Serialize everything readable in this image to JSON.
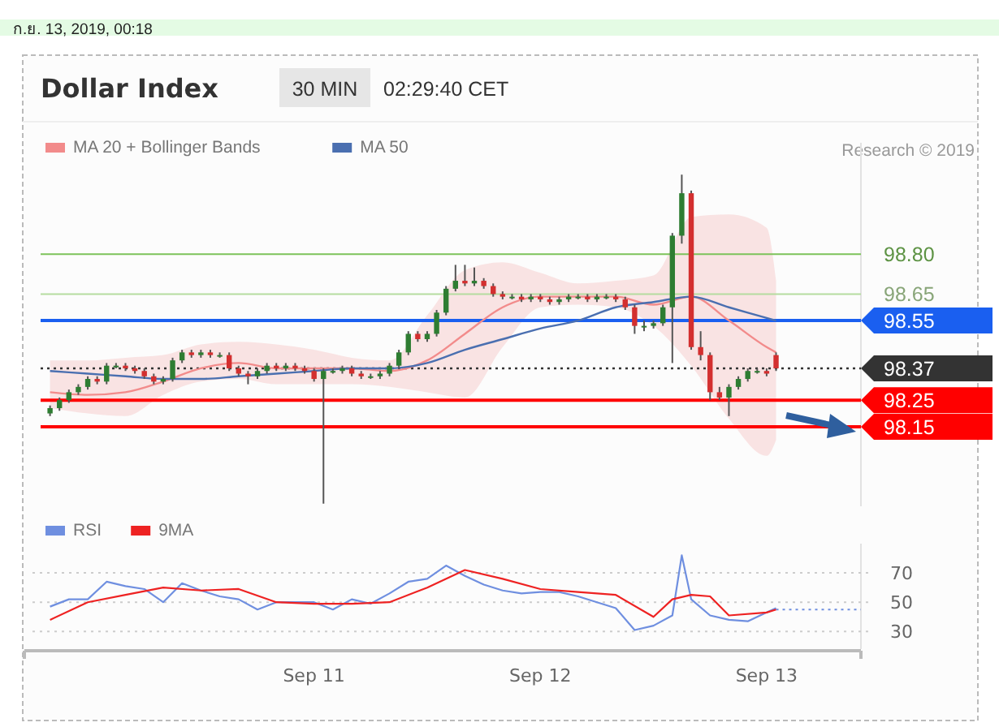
{
  "chart_data": [
    {
      "type": "candlestick",
      "title": "Dollar Index",
      "annotations": [
        "ก.ย. 13, 2019, 00:18",
        "30 MIN",
        "02:29:40 CET",
        "Research © 2019"
      ],
      "x": [
        "2019-09-09T20:00",
        "2019-09-09T21:00",
        "2019-09-09T22:00",
        "2019-09-09T23:00",
        "2019-09-10T00:00",
        "2019-09-10T01:00",
        "2019-09-10T02:00",
        "2019-09-10T03:00",
        "2019-09-10T04:00",
        "2019-09-10T05:00",
        "2019-09-10T06:00",
        "2019-09-10T07:00",
        "2019-09-10T08:00",
        "2019-09-10T09:00",
        "2019-09-10T10:00",
        "2019-09-10T11:00",
        "2019-09-10T12:00",
        "2019-09-10T13:00",
        "2019-09-10T14:00",
        "2019-09-10T15:00",
        "2019-09-10T16:00",
        "2019-09-10T17:00",
        "2019-09-10T18:00",
        "2019-09-10T19:00",
        "2019-09-10T20:00",
        "2019-09-10T21:00",
        "2019-09-10T22:00",
        "2019-09-10T23:00",
        "2019-09-11T00:00",
        "2019-09-11T01:00",
        "2019-09-11T02:00",
        "2019-09-11T03:00",
        "2019-09-11T04:00",
        "2019-09-11T05:00",
        "2019-09-11T06:00",
        "2019-09-11T07:00",
        "2019-09-11T08:00",
        "2019-09-11T09:00",
        "2019-09-11T10:00",
        "2019-09-11T11:00",
        "2019-09-11T12:00",
        "2019-09-11T13:00",
        "2019-09-11T14:00",
        "2019-09-11T15:00",
        "2019-09-11T16:00",
        "2019-09-11T17:00",
        "2019-09-11T18:00",
        "2019-09-11T19:00",
        "2019-09-11T20:00",
        "2019-09-11T21:00",
        "2019-09-11T22:00",
        "2019-09-11T23:00",
        "2019-09-12T00:00",
        "2019-09-12T01:00",
        "2019-09-12T02:00",
        "2019-09-12T03:00",
        "2019-09-12T04:00",
        "2019-09-12T05:00",
        "2019-09-12T06:00",
        "2019-09-12T07:00",
        "2019-09-12T08:00",
        "2019-09-12T09:00",
        "2019-09-12T10:00",
        "2019-09-12T11:00",
        "2019-09-12T12:00",
        "2019-09-12T13:00",
        "2019-09-12T14:00",
        "2019-09-12T15:00",
        "2019-09-12T16:00",
        "2019-09-12T17:00",
        "2019-09-12T18:00",
        "2019-09-12T19:00",
        "2019-09-12T20:00",
        "2019-09-12T21:00",
        "2019-09-12T22:00",
        "2019-09-12T23:00",
        "2019-09-13T00:00",
        "2019-09-13T01:00"
      ],
      "ohlc": [
        [
          98.2,
          98.23,
          98.19,
          98.22
        ],
        [
          98.22,
          98.26,
          98.21,
          98.25
        ],
        [
          98.25,
          98.29,
          98.24,
          98.28
        ],
        [
          98.28,
          98.31,
          98.27,
          98.3
        ],
        [
          98.3,
          98.34,
          98.29,
          98.33
        ],
        [
          98.33,
          98.34,
          98.31,
          98.32
        ],
        [
          98.32,
          98.39,
          98.31,
          98.38
        ],
        [
          98.38,
          98.39,
          98.37,
          98.38
        ],
        [
          98.38,
          98.39,
          98.36,
          98.37
        ],
        [
          98.37,
          98.38,
          98.35,
          98.36
        ],
        [
          98.36,
          98.37,
          98.33,
          98.34
        ],
        [
          98.34,
          98.35,
          98.31,
          98.32
        ],
        [
          98.32,
          98.34,
          98.31,
          98.33
        ],
        [
          98.33,
          98.41,
          98.32,
          98.4
        ],
        [
          98.4,
          98.44,
          98.39,
          98.43
        ],
        [
          98.43,
          98.44,
          98.41,
          98.42
        ],
        [
          98.42,
          98.44,
          98.41,
          98.43
        ],
        [
          98.43,
          98.44,
          98.41,
          98.42
        ],
        [
          98.42,
          98.43,
          98.41,
          98.42
        ],
        [
          98.42,
          98.43,
          98.36,
          98.37
        ],
        [
          98.37,
          98.38,
          98.34,
          98.35
        ],
        [
          98.35,
          98.36,
          98.31,
          98.34
        ],
        [
          98.34,
          98.37,
          98.33,
          98.36
        ],
        [
          98.36,
          98.39,
          98.35,
          98.38
        ],
        [
          98.38,
          98.39,
          98.36,
          98.37
        ],
        [
          98.37,
          98.39,
          98.36,
          98.38
        ],
        [
          98.38,
          98.39,
          98.36,
          98.37
        ],
        [
          98.37,
          98.38,
          98.35,
          98.36
        ],
        [
          98.36,
          98.37,
          98.32,
          98.33
        ],
        [
          98.33,
          98.37,
          97.86,
          98.36
        ],
        [
          98.36,
          98.37,
          98.35,
          98.36
        ],
        [
          98.36,
          98.38,
          98.35,
          98.37
        ],
        [
          98.37,
          98.38,
          98.34,
          98.35
        ],
        [
          98.35,
          98.36,
          98.33,
          98.34
        ],
        [
          98.34,
          98.35,
          98.33,
          98.34
        ],
        [
          98.34,
          98.36,
          98.33,
          98.35
        ],
        [
          98.35,
          98.39,
          98.34,
          98.38
        ],
        [
          98.38,
          98.44,
          98.37,
          98.43
        ],
        [
          98.43,
          98.51,
          98.42,
          98.5
        ],
        [
          98.5,
          98.51,
          98.47,
          98.48
        ],
        [
          98.48,
          98.51,
          98.47,
          98.5
        ],
        [
          98.5,
          98.59,
          98.49,
          98.58
        ],
        [
          98.58,
          98.68,
          98.57,
          98.67
        ],
        [
          98.67,
          98.76,
          98.66,
          98.7
        ],
        [
          98.7,
          98.76,
          98.68,
          98.69
        ],
        [
          98.69,
          98.75,
          98.68,
          98.7
        ],
        [
          98.7,
          98.71,
          98.67,
          98.68
        ],
        [
          98.68,
          98.69,
          98.64,
          98.65
        ],
        [
          98.65,
          98.66,
          98.63,
          98.64
        ],
        [
          98.64,
          98.65,
          98.63,
          98.64
        ],
        [
          98.64,
          98.65,
          98.62,
          98.63
        ],
        [
          98.63,
          98.65,
          98.62,
          98.64
        ],
        [
          98.64,
          98.65,
          98.62,
          98.63
        ],
        [
          98.63,
          98.64,
          98.61,
          98.62
        ],
        [
          98.62,
          98.64,
          98.61,
          98.63
        ],
        [
          98.63,
          98.65,
          98.62,
          98.64
        ],
        [
          98.64,
          98.65,
          98.63,
          98.64
        ],
        [
          98.64,
          98.65,
          98.62,
          98.63
        ],
        [
          98.63,
          98.65,
          98.62,
          98.64
        ],
        [
          98.64,
          98.65,
          98.63,
          98.64
        ],
        [
          98.64,
          98.65,
          98.62,
          98.63
        ],
        [
          98.63,
          98.64,
          98.59,
          98.6
        ],
        [
          98.6,
          98.61,
          98.5,
          98.53
        ],
        [
          98.53,
          98.55,
          98.51,
          98.53
        ],
        [
          98.53,
          98.55,
          98.52,
          98.54
        ],
        [
          98.54,
          98.61,
          98.53,
          98.6
        ],
        [
          98.6,
          98.88,
          98.39,
          98.87
        ],
        [
          98.87,
          99.1,
          98.84,
          99.03
        ],
        [
          99.03,
          99.04,
          98.44,
          98.45
        ],
        [
          98.45,
          98.51,
          98.4,
          98.42
        ],
        [
          98.42,
          98.43,
          98.25,
          98.28
        ],
        [
          98.28,
          98.3,
          98.25,
          98.26
        ],
        [
          98.26,
          98.31,
          98.19,
          98.3
        ],
        [
          98.3,
          98.34,
          98.29,
          98.33
        ],
        [
          98.33,
          98.37,
          98.32,
          98.36
        ],
        [
          98.36,
          98.37,
          98.35,
          98.36
        ],
        [
          98.36,
          98.37,
          98.34,
          98.35
        ],
        [
          98.42,
          98.43,
          98.36,
          98.37
        ]
      ],
      "series": [
        {
          "type": "line",
          "name": "MA 20 + Bollinger Bands",
          "color": "#f28b8b",
          "x": [
            "2019-09-09T20:00",
            "2019-09-10T00:00",
            "2019-09-10T04:00",
            "2019-09-10T08:00",
            "2019-09-10T12:00",
            "2019-09-10T16:00",
            "2019-09-10T20:00",
            "2019-09-11T00:00",
            "2019-09-11T04:00",
            "2019-09-11T08:00",
            "2019-09-11T12:00",
            "2019-09-11T16:00",
            "2019-09-11T20:00",
            "2019-09-12T00:00",
            "2019-09-12T04:00",
            "2019-09-12T08:00",
            "2019-09-12T12:00",
            "2019-09-12T16:00",
            "2019-09-12T20:00",
            "2019-09-13T00:00",
            "2019-09-13T01:00"
          ],
          "values": [
            98.28,
            98.27,
            98.28,
            98.32,
            98.37,
            98.39,
            98.37,
            98.37,
            98.37,
            98.36,
            98.4,
            98.5,
            98.6,
            98.64,
            98.64,
            98.64,
            98.61,
            98.64,
            98.55,
            98.45,
            98.43
          ],
          "lower": [
            98.22,
            98.2,
            98.19,
            98.27,
            98.32,
            98.33,
            98.31,
            98.31,
            98.31,
            98.3,
            98.28,
            98.26,
            98.45,
            98.6,
            98.61,
            98.6,
            98.53,
            98.38,
            98.18,
            98.04,
            98.1
          ],
          "upper": [
            98.4,
            98.4,
            98.41,
            98.42,
            98.46,
            98.47,
            98.46,
            98.44,
            98.41,
            98.4,
            98.57,
            98.74,
            98.77,
            98.73,
            98.69,
            98.7,
            98.72,
            98.94,
            98.95,
            98.9,
            98.7
          ]
        },
        {
          "type": "line",
          "name": "MA 50",
          "color": "#4a6fb0",
          "x": [
            "2019-09-09T20:00",
            "2019-09-10T00:00",
            "2019-09-10T04:00",
            "2019-09-10T08:00",
            "2019-09-10T12:00",
            "2019-09-10T16:00",
            "2019-09-10T20:00",
            "2019-09-11T00:00",
            "2019-09-11T04:00",
            "2019-09-11T08:00",
            "2019-09-11T12:00",
            "2019-09-11T16:00",
            "2019-09-11T20:00",
            "2019-09-12T00:00",
            "2019-09-12T04:00",
            "2019-09-12T08:00",
            "2019-09-12T12:00",
            "2019-09-12T16:00",
            "2019-09-12T20:00",
            "2019-09-13T00:00",
            "2019-09-13T01:00"
          ],
          "values": [
            98.36,
            98.35,
            98.34,
            98.33,
            98.33,
            98.34,
            98.35,
            98.36,
            98.37,
            98.37,
            98.39,
            98.44,
            98.48,
            98.52,
            98.55,
            98.6,
            98.62,
            98.64,
            98.6,
            98.56,
            98.55
          ]
        }
      ],
      "xlim": [
        "2019-09-09T19:00",
        "2019-09-13T10:00"
      ],
      "ylim": [
        97.85,
        99.22
      ],
      "legend": "top left",
      "ref_lines": [
        {
          "axis": "y",
          "value": 98.8,
          "label": "98.80",
          "color": "#7cc35a"
        },
        {
          "axis": "y",
          "value": 98.65,
          "label": "98.65",
          "color": "#b5dca0"
        },
        {
          "axis": "y",
          "value": 98.55,
          "label": "98.55",
          "color": "#1a5ff0"
        },
        {
          "axis": "y",
          "value": 98.37,
          "label": "98.37",
          "color": "#333333",
          "line_style": "dotted"
        },
        {
          "axis": "y",
          "value": 98.25,
          "label": "98.25",
          "color": "#ff0000"
        },
        {
          "axis": "y",
          "value": 98.15,
          "label": "98.15",
          "color": "#ff0000"
        }
      ]
    },
    {
      "type": "line",
      "legend": "top left",
      "grid": "y",
      "series": [
        {
          "name": "RSI",
          "color": "#6f8fe0",
          "x": [
            "2019-09-09T20:00",
            "2019-09-09T22:00",
            "2019-09-10T00:00",
            "2019-09-10T02:00",
            "2019-09-10T04:00",
            "2019-09-10T06:00",
            "2019-09-10T08:00",
            "2019-09-10T10:00",
            "2019-09-10T12:00",
            "2019-09-10T14:00",
            "2019-09-10T16:00",
            "2019-09-10T18:00",
            "2019-09-10T20:00",
            "2019-09-10T22:00",
            "2019-09-11T00:00",
            "2019-09-11T02:00",
            "2019-09-11T04:00",
            "2019-09-11T06:00",
            "2019-09-11T08:00",
            "2019-09-11T10:00",
            "2019-09-11T12:00",
            "2019-09-11T14:00",
            "2019-09-11T16:00",
            "2019-09-11T18:00",
            "2019-09-11T20:00",
            "2019-09-11T22:00",
            "2019-09-12T00:00",
            "2019-09-12T02:00",
            "2019-09-12T04:00",
            "2019-09-12T06:00",
            "2019-09-12T08:00",
            "2019-09-12T10:00",
            "2019-09-12T12:00",
            "2019-09-12T14:00",
            "2019-09-12T15:00",
            "2019-09-12T16:00",
            "2019-09-12T18:00",
            "2019-09-12T20:00",
            "2019-09-12T22:00",
            "2019-09-13T00:00",
            "2019-09-13T01:00"
          ],
          "values": [
            47,
            52,
            52,
            64,
            61,
            59,
            50,
            63,
            58,
            54,
            52,
            45,
            50,
            50,
            50,
            45,
            52,
            49,
            56,
            64,
            66,
            75,
            68,
            62,
            58,
            56,
            57,
            57,
            54,
            50,
            46,
            31,
            34,
            41,
            82,
            52,
            41,
            38,
            37,
            43,
            46
          ]
        },
        {
          "name": "9MA",
          "color": "#ee2222",
          "x": [
            "2019-09-09T20:00",
            "2019-09-10T00:00",
            "2019-09-10T04:00",
            "2019-09-10T08:00",
            "2019-09-10T12:00",
            "2019-09-10T16:00",
            "2019-09-10T20:00",
            "2019-09-11T00:00",
            "2019-09-11T04:00",
            "2019-09-11T08:00",
            "2019-09-11T12:00",
            "2019-09-11T16:00",
            "2019-09-11T20:00",
            "2019-09-12T00:00",
            "2019-09-12T04:00",
            "2019-09-12T08:00",
            "2019-09-12T12:00",
            "2019-09-12T14:00",
            "2019-09-12T16:00",
            "2019-09-12T18:00",
            "2019-09-12T20:00",
            "2019-09-13T00:00",
            "2019-09-13T01:00"
          ],
          "values": [
            38,
            50,
            55,
            60,
            58,
            59,
            50,
            49,
            49,
            50,
            60,
            72,
            66,
            59,
            57,
            55,
            40,
            52,
            55,
            54,
            41,
            43,
            45
          ]
        }
      ],
      "xlim": [
        "2019-09-09T19:00",
        "2019-09-13T10:00"
      ],
      "xticks": [
        {
          "value": "2019-09-11",
          "label": "Sep 11"
        },
        {
          "value": "2019-09-12",
          "label": "Sep 12"
        },
        {
          "value": "2019-09-13",
          "label": "Sep 13"
        }
      ],
      "ylim": [
        18,
        90
      ],
      "yticks": [
        30,
        50,
        70
      ],
      "ref_lines": [
        {
          "axis": "y",
          "value": 45,
          "color": "#6f8fe0",
          "line_style": "dotted"
        }
      ]
    }
  ]
}
